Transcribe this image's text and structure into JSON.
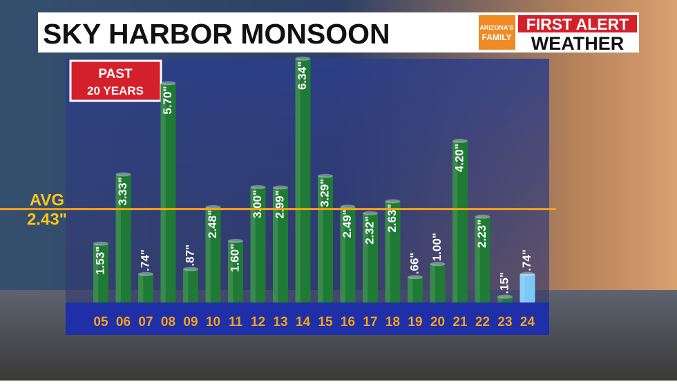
{
  "chart_data": {
    "type": "bar",
    "title": "SKY HARBOR MONSOON",
    "badge": [
      "PAST",
      "20 YEARS"
    ],
    "logo": {
      "brand": [
        "ARIZONA'S",
        "FAMILY"
      ],
      "banner": [
        "FIRST ALERT",
        "WEATHER"
      ]
    },
    "categories": [
      "05",
      "06",
      "07",
      "08",
      "09",
      "10",
      "11",
      "12",
      "13",
      "14",
      "15",
      "16",
      "17",
      "18",
      "19",
      "20",
      "21",
      "22",
      "23",
      "24"
    ],
    "values": [
      1.53,
      3.33,
      0.74,
      5.7,
      0.87,
      2.48,
      1.6,
      3.0,
      2.99,
      6.34,
      3.29,
      2.49,
      2.32,
      2.63,
      0.66,
      1.0,
      4.2,
      2.23,
      0.15,
      0.74
    ],
    "value_labels": [
      "1.53\"",
      "3.33\"",
      ".74\"",
      "5.70\"",
      ".87\"",
      "2.48\"",
      "1.60\"",
      "3.00\"",
      "2.99\"",
      "6.34\"",
      "3.29\"",
      "2.49\"",
      "2.32\"",
      "2.63\"",
      ".66\"",
      "1.00\"",
      "4.20\"",
      "2.23\"",
      ".15\"",
      ".74\""
    ],
    "colors": [
      "#1f7a35",
      "#1f7a35",
      "#1f7a35",
      "#1f7a35",
      "#1f7a35",
      "#1f7a35",
      "#1f7a35",
      "#1f7a35",
      "#1f7a35",
      "#1f7a35",
      "#1f7a35",
      "#1f7a35",
      "#1f7a35",
      "#1f7a35",
      "#1f7a35",
      "#1f7a35",
      "#1f7a35",
      "#1f7a35",
      "#1f7a35",
      "#7cc8f5"
    ],
    "average": {
      "name": "AVG",
      "value": 2.43,
      "label": "2.43\"",
      "color": "#f5a21a"
    },
    "ylim": [
      0,
      6.5
    ]
  }
}
